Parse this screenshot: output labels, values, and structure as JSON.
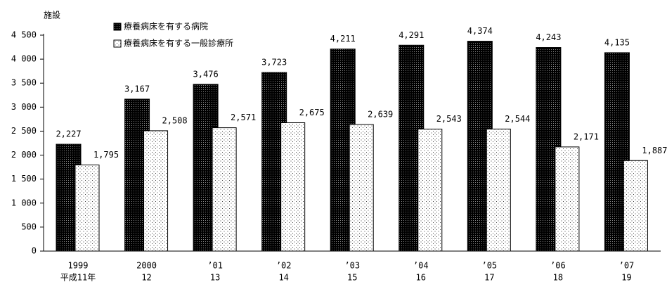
{
  "chart_data": {
    "type": "bar",
    "y_axis_label": "施設",
    "categories": [
      "1999",
      "2000",
      "’01",
      "’02",
      "’03",
      "’04",
      "’05",
      "’06",
      "’07"
    ],
    "categories_sub": [
      "平成11年",
      "12",
      "13",
      "14",
      "15",
      "16",
      "17",
      "18",
      "19"
    ],
    "series": [
      {
        "name": "療養病床を有する病院",
        "color": "#000000",
        "values": [
          2227,
          3167,
          3476,
          3723,
          4211,
          4291,
          4374,
          4243,
          4135
        ],
        "value_labels": [
          "2,227",
          "3,167",
          "3,476",
          "3,723",
          "4,211",
          "4,291",
          "4,374",
          "4,243",
          "4,135"
        ]
      },
      {
        "name": "療養病床を有する一般診療所",
        "color": "#ffffff",
        "values": [
          1795,
          2508,
          2571,
          2675,
          2639,
          2543,
          2544,
          2171,
          1887
        ],
        "value_labels": [
          "1,795",
          "2,508",
          "2,571",
          "2,675",
          "2,639",
          "2,543",
          "2,544",
          "2,171",
          "1,887"
        ]
      }
    ],
    "ylim": [
      0,
      4500
    ],
    "yticks": [
      0,
      500,
      {
        "value": 1000,
        "label": "1 000"
      },
      {
        "value": 1500,
        "label": "1 500"
      },
      {
        "value": 2000,
        "label": "2 000"
      },
      {
        "value": 2500,
        "label": "2 500"
      },
      {
        "value": 3000,
        "label": "3 000"
      },
      {
        "value": 3500,
        "label": "3 500"
      },
      {
        "value": 4000,
        "label": "4 000"
      },
      {
        "value": 4500,
        "label": "4 500"
      }
    ],
    "legend": "top-left"
  }
}
